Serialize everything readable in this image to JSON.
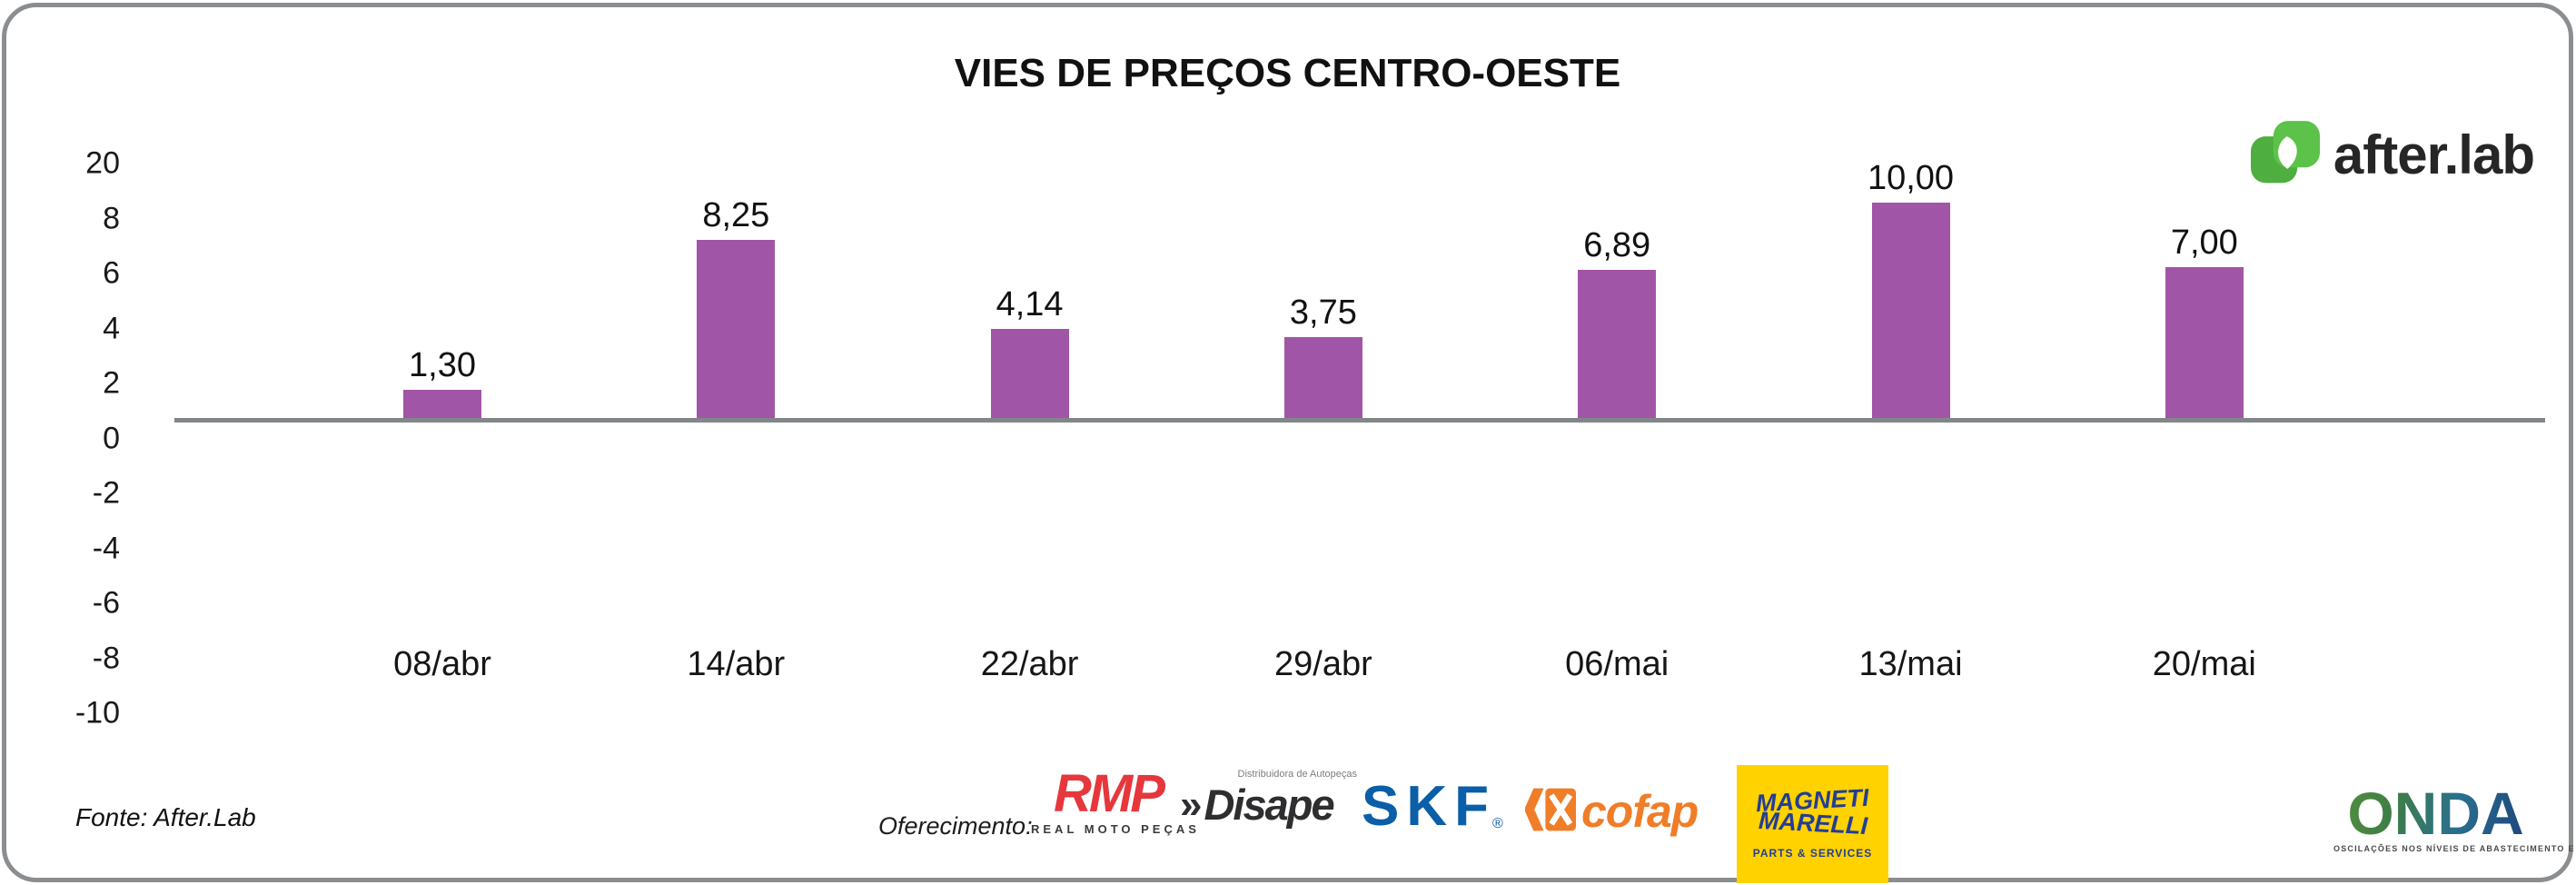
{
  "title": "VIES DE PREÇOS CENTRO-OESTE",
  "brand": {
    "name": "after.lab",
    "green": "#5CBD4B",
    "icon": "afterlab-leaf-icon"
  },
  "chart_data": {
    "type": "bar",
    "title": "VIES DE PREÇOS CENTRO-OESTE",
    "categories": [
      "08/abr",
      "14/abr",
      "22/abr",
      "29/abr",
      "06/mai",
      "13/mai",
      "20/mai"
    ],
    "values": [
      1.3,
      8.25,
      4.14,
      3.75,
      6.89,
      10.0,
      7.0
    ],
    "value_labels": [
      "1,30",
      "8,25",
      "4,14",
      "3,75",
      "6,89",
      "10,00",
      "7,00"
    ],
    "ytick_labels": [
      "20",
      "8",
      "6",
      "4",
      "2",
      "0",
      "-2",
      "-4",
      "-6",
      "-8",
      "-10"
    ],
    "ylim": [
      -10,
      20
    ],
    "xlabel": "",
    "ylabel": "",
    "grid": false,
    "legend": "none",
    "bar_color": "#A155A7",
    "axis_color": "#828689"
  },
  "footer": {
    "source": "Fonte: After.Lab",
    "sponsor_intro": "Oferecimento:",
    "sponsors": {
      "rmp": {
        "text": "RMP",
        "sub": "REAL MOTO PEÇAS",
        "color": "#E6373D"
      },
      "disape": {
        "chevron": "»",
        "text": "Disape",
        "sub": "Distribuidora de Autopeças",
        "color": "#2e2e30"
      },
      "skf": {
        "text": "SKF",
        "reg": "®",
        "color": "#0B5EA8"
      },
      "cofap": {
        "text": "cofap",
        "color": "#F07D28"
      },
      "magneti": {
        "line1": "MAGNETI",
        "line2": "MARELLI",
        "sub": "PARTS & SERVICES",
        "bg": "#FFD200",
        "fg": "#233E93"
      }
    },
    "onda": {
      "name": "ONDA",
      "tagline": "OSCILAÇÕES NOS NÍVEIS DE ABASTECIMENTO E PREÇO"
    }
  }
}
